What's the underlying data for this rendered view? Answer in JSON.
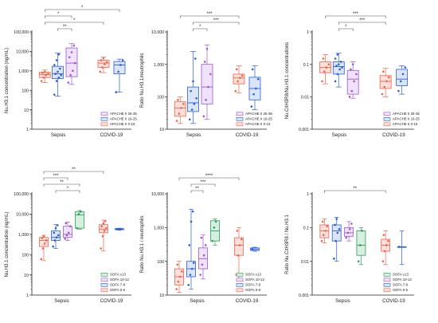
{
  "colors": {
    "apache_25_35": "#9b59d0",
    "apache_16_25": "#2c5fd4",
    "apache_0_15": "#f0644c",
    "sofa_13": "#2e9e5b",
    "sofa_10_12": "#2c5fd4",
    "sofa_7_9": "#9b59d0",
    "sofa_0_6": "#f0644c",
    "covid": "#2c5fd4"
  },
  "chart_data": [
    {
      "id": "A",
      "type": "box",
      "ylabel": "Nu.H3.1 concentration (ng/mL)",
      "yscale": "log",
      "ylim": [
        1,
        100000
      ],
      "yticks": [
        1,
        10,
        100,
        1000,
        10000,
        100000
      ],
      "ytick_labels": [
        "1",
        "10",
        "100",
        "1,000",
        "10,000",
        "100,000"
      ],
      "xlabels": [
        "Sepsis",
        "COVID-19"
      ],
      "groups": [
        {
          "series": "APACHE II 0-15",
          "color": "#f0644c",
          "fill": "#fde0d9",
          "group": "Sepsis",
          "q1": 450,
          "median": 650,
          "q3": 850,
          "min": 250,
          "max": 1100,
          "points": [
            300,
            450,
            600,
            700,
            800,
            900
          ]
        },
        {
          "series": "APACHE II 16-25",
          "color": "#2c5fd4",
          "fill": "#dbe5fa",
          "group": "Sepsis",
          "q1": 400,
          "median": 700,
          "q3": 1700,
          "min": 50,
          "max": 8000,
          "points": [
            60,
            300,
            450,
            600,
            700,
            900,
            1300,
            2000,
            3500,
            7000
          ]
        },
        {
          "series": "APACHE II 25-35",
          "color": "#9b59d0",
          "fill": "#efe2fa",
          "group": "Sepsis",
          "q1": 500,
          "median": 2500,
          "q3": 15000,
          "min": 200,
          "max": 25000,
          "points": [
            250,
            600,
            1000,
            2500,
            5000,
            9000,
            20000
          ]
        },
        {
          "series": "APACHE II 0-15",
          "color": "#f0644c",
          "fill": "#fde0d9",
          "group": "COVID-19",
          "q1": 1500,
          "median": 2500,
          "q3": 3500,
          "min": 800,
          "max": 5000,
          "points": [
            900,
            1500,
            2200,
            2800,
            3500,
            4500
          ]
        },
        {
          "series": "APACHE II 16-25",
          "color": "#2c5fd4",
          "fill": "#dbe5fa",
          "group": "COVID-19",
          "q1": 700,
          "median": 2000,
          "q3": 3000,
          "min": 80,
          "max": 4000,
          "points": [
            80,
            900,
            2000,
            3500
          ]
        }
      ],
      "legend": [
        "APACHE II 25-35",
        "APACHE II 16-25",
        "APACHE II 0-15"
      ],
      "significance": [
        {
          "from": 0,
          "to": 4,
          "label": "*",
          "level": 3
        },
        {
          "from": 0,
          "to": 2,
          "label": "*",
          "level": 2
        },
        {
          "from": 0,
          "to": 3,
          "label": "*",
          "level": 1
        },
        {
          "from": 1,
          "to": 2,
          "label": "**",
          "level": 0
        }
      ]
    },
    {
      "id": "B",
      "type": "box",
      "ylabel": "Ratio Nu.H3.1/neutrophils",
      "yscale": "log",
      "ylim": [
        10,
        10000
      ],
      "yticks": [
        10,
        100,
        1000,
        10000
      ],
      "ytick_labels": [
        "10",
        "100",
        "1,000",
        "10,000"
      ],
      "xlabels": [
        "Sepsis",
        "COVID-19"
      ],
      "groups": [
        {
          "series": "APACHE II 0-15",
          "color": "#f0644c",
          "fill": "#fde0d9",
          "group": "Sepsis",
          "q1": 25,
          "median": 45,
          "q3": 70,
          "min": 15,
          "max": 100,
          "points": [
            18,
            30,
            45,
            60,
            80
          ]
        },
        {
          "series": "APACHE II 16-25",
          "color": "#2c5fd4",
          "fill": "#dbe5fa",
          "group": "Sepsis",
          "q1": 35,
          "median": 65,
          "q3": 200,
          "min": 15,
          "max": 2500,
          "points": [
            20,
            40,
            60,
            90,
            150,
            300,
            1500
          ]
        },
        {
          "series": "APACHE II 25-35",
          "color": "#9b59d0",
          "fill": "#efe2fa",
          "group": "Sepsis",
          "q1": 60,
          "median": 200,
          "q3": 1000,
          "min": 20,
          "max": 4000,
          "points": [
            25,
            80,
            200,
            500,
            1200,
            3000
          ]
        },
        {
          "series": "APACHE II 0-15",
          "color": "#f0644c",
          "fill": "#fde0d9",
          "group": "COVID-19",
          "q1": 250,
          "median": 380,
          "q3": 500,
          "min": 130,
          "max": 900,
          "points": [
            150,
            300,
            380,
            450,
            700
          ]
        },
        {
          "series": "APACHE II 16-25",
          "color": "#2c5fd4",
          "fill": "#dbe5fa",
          "group": "COVID-19",
          "q1": 80,
          "median": 180,
          "q3": 400,
          "min": 40,
          "max": 900,
          "points": [
            50,
            120,
            180,
            350,
            700
          ]
        }
      ],
      "legend": [
        "APACHE II 25-35",
        "APACHE II 16-25",
        "APACHE II 0-15"
      ],
      "significance": [
        {
          "from": 0,
          "to": 3,
          "label": "***",
          "level": 2
        },
        {
          "from": 1,
          "to": 3,
          "label": "***",
          "level": 1
        },
        {
          "from": 1,
          "to": 2,
          "label": "*",
          "level": 0
        }
      ]
    },
    {
      "id": "C",
      "type": "box",
      "ylabel": "Nu.CitH3R8/Nu.H3.1 concentrations",
      "yscale": "log",
      "ylim": [
        0.001,
        1
      ],
      "yticks": [
        0.001,
        0.01,
        0.1,
        1
      ],
      "ytick_labels": [
        "0.001",
        "0.01",
        "0.1",
        "1"
      ],
      "xlabels": [
        "Sepsis",
        "COVID-19"
      ],
      "groups": [
        {
          "series": "APACHE II 0-15",
          "color": "#f0644c",
          "fill": "#fde0d9",
          "group": "Sepsis",
          "q1": 0.055,
          "median": 0.08,
          "q3": 0.12,
          "min": 0.025,
          "max": 0.2,
          "points": [
            0.03,
            0.06,
            0.08,
            0.1,
            0.15
          ]
        },
        {
          "series": "APACHE II 16-25",
          "color": "#2c5fd4",
          "fill": "#dbe5fa",
          "group": "Sepsis",
          "q1": 0.05,
          "median": 0.085,
          "q3": 0.12,
          "min": 0.02,
          "max": 0.22,
          "points": [
            0.03,
            0.05,
            0.07,
            0.08,
            0.09,
            0.1,
            0.12,
            0.15,
            0.2
          ]
        },
        {
          "series": "APACHE II 25-35",
          "color": "#9b59d0",
          "fill": "#efe2fa",
          "group": "Sepsis",
          "q1": 0.012,
          "median": 0.035,
          "q3": 0.065,
          "min": 0.009,
          "max": 0.12,
          "points": [
            0.01,
            0.015,
            0.03,
            0.05,
            0.07,
            0.1
          ]
        },
        {
          "series": "APACHE II 0-15",
          "color": "#f0644c",
          "fill": "#fde0d9",
          "group": "COVID-19",
          "q1": 0.018,
          "median": 0.03,
          "q3": 0.045,
          "min": 0.01,
          "max": 0.075,
          "points": [
            0.012,
            0.02,
            0.03,
            0.04,
            0.06
          ]
        },
        {
          "series": "APACHE II 16-25",
          "color": "#2c5fd4",
          "fill": "#dbe5fa",
          "group": "COVID-19",
          "q1": 0.022,
          "median": 0.035,
          "q3": 0.07,
          "min": 0.012,
          "max": 0.09,
          "points": [
            0.015,
            0.03,
            0.05,
            0.08
          ]
        }
      ],
      "legend": [
        "APACHE II 25-35",
        "APACHE II 16-25",
        "APACHE II 0-15"
      ],
      "significance": [
        {
          "from": 0,
          "to": 3,
          "label": "***",
          "level": 2
        },
        {
          "from": 1,
          "to": 3,
          "label": "***",
          "level": 1
        },
        {
          "from": 1,
          "to": 2,
          "label": "*",
          "level": 0
        }
      ]
    },
    {
      "id": "D",
      "type": "box",
      "ylabel": "Nu.H3.1 concentration (ng/mL)",
      "yscale": "log",
      "ylim": [
        1,
        100000
      ],
      "yticks": [
        1,
        10,
        100,
        1000,
        10000,
        100000
      ],
      "ytick_labels": [
        "1",
        "10",
        "100",
        "1,000",
        "10,000",
        "100,000"
      ],
      "xlabels": [
        "Sepsis",
        "COVID-19"
      ],
      "groups": [
        {
          "series": "SOFA 0-6",
          "color": "#f0644c",
          "fill": "#fde0d9",
          "group": "Sepsis",
          "q1": 250,
          "median": 500,
          "q3": 700,
          "min": 50,
          "max": 900,
          "points": [
            60,
            200,
            350,
            500,
            650,
            800
          ]
        },
        {
          "series": "SOFA 7-9",
          "color": "#2c5fd4",
          "fill": "#dbe5fa",
          "group": "Sepsis",
          "q1": 500,
          "median": 700,
          "q3": 1500,
          "min": 200,
          "max": 3000,
          "points": [
            250,
            500,
            700,
            900,
            1200,
            2000,
            2800
          ]
        },
        {
          "series": "SOFA 10-12",
          "color": "#9b59d0",
          "fill": "#efe2fa",
          "group": "Sepsis",
          "q1": 700,
          "median": 1000,
          "q3": 2500,
          "min": 500,
          "max": 4000,
          "points": [
            600,
            900,
            1200,
            2500,
            3500
          ]
        },
        {
          "series": "SOFA ≥13",
          "color": "#2e9e5b",
          "fill": "#d7efe1",
          "group": "Sepsis",
          "q1": 2000,
          "median": 9000,
          "q3": 13000,
          "min": 1800,
          "max": 15000,
          "points": [
            2000,
            10000,
            13000
          ]
        },
        {
          "series": "SOFA 0-6",
          "color": "#f0644c",
          "fill": "#fde0d9",
          "group": "COVID-19",
          "q1": 1200,
          "median": 1800,
          "q3": 3000,
          "min": 150,
          "max": 5000,
          "points": [
            200,
            800,
            1500,
            2000,
            2500,
            3500,
            4500
          ]
        },
        {
          "series": "COVID",
          "color": "#2c5fd4",
          "fill": "#dbe5fa",
          "group": "COVID-19",
          "q1": 1700,
          "median": 1800,
          "q3": 1900,
          "min": 1600,
          "max": 2000,
          "points": [
            1800
          ]
        }
      ],
      "legend": [
        "SOFA ≥13",
        "SOFA 10-12",
        "SOFA 7-9",
        "SOFA 0-6"
      ],
      "significance": [
        {
          "from": 0,
          "to": 4,
          "label": "**",
          "level": 3
        },
        {
          "from": 0,
          "to": 2,
          "label": "***",
          "level": 2
        },
        {
          "from": 0,
          "to": 3,
          "label": "**",
          "level": 1
        },
        {
          "from": 1,
          "to": 3,
          "label": "*",
          "level": 0
        }
      ]
    },
    {
      "id": "E",
      "type": "box",
      "ylabel": "Ratio Nu.H3.1 / neutrophils",
      "yscale": "log",
      "ylim": [
        10,
        10000
      ],
      "yticks": [
        10,
        100,
        1000,
        10000
      ],
      "ytick_labels": [
        "10",
        "100",
        "1,000",
        "10,000"
      ],
      "xlabels": [
        "Sepsis",
        "COVID-19"
      ],
      "groups": [
        {
          "series": "SOFA 0-6",
          "color": "#f0644c",
          "fill": "#fde0d9",
          "group": "Sepsis",
          "q1": 20,
          "median": 35,
          "q3": 60,
          "min": 12,
          "max": 100,
          "points": [
            15,
            25,
            35,
            50,
            80
          ]
        },
        {
          "series": "SOFA 7-9",
          "color": "#2c5fd4",
          "fill": "#dbe5fa",
          "group": "Sepsis",
          "q1": 35,
          "median": 60,
          "q3": 100,
          "min": 15,
          "max": 3500,
          "points": [
            20,
            40,
            60,
            90,
            300,
            1500,
            3000
          ]
        },
        {
          "series": "SOFA 10-12",
          "color": "#9b59d0",
          "fill": "#efe2fa",
          "group": "Sepsis",
          "q1": 60,
          "median": 120,
          "q3": 250,
          "min": 30,
          "max": 600,
          "points": [
            40,
            80,
            150,
            300,
            500
          ]
        },
        {
          "series": "SOFA ≥13",
          "color": "#2e9e5b",
          "fill": "#d7efe1",
          "group": "Sepsis",
          "q1": 400,
          "median": 800,
          "q3": 1600,
          "min": 300,
          "max": 1800,
          "points": [
            400,
            1000,
            1500
          ]
        },
        {
          "series": "SOFA 0-6",
          "color": "#f0644c",
          "fill": "#fde0d9",
          "group": "COVID-19",
          "q1": 150,
          "median": 300,
          "q3": 500,
          "min": 30,
          "max": 1000,
          "points": [
            40,
            150,
            300,
            450,
            800
          ]
        },
        {
          "series": "COVID",
          "color": "#2c5fd4",
          "fill": "#dbe5fa",
          "group": "COVID-19",
          "q1": 210,
          "median": 230,
          "q3": 250,
          "min": 200,
          "max": 260,
          "points": [
            230
          ]
        }
      ],
      "legend": [
        "SOFA ≥13",
        "SOFA 10-12",
        "SOFA 7-9",
        "SOFA 0-6"
      ],
      "significance": [
        {
          "from": 0,
          "to": 4,
          "label": "****",
          "level": 2
        },
        {
          "from": 1,
          "to": 3,
          "label": "***",
          "level": 1
        },
        {
          "from": 1,
          "to": 2,
          "label": "**",
          "level": 0
        }
      ]
    },
    {
      "id": "F",
      "type": "box",
      "ylabel": "Ratio Nu.CitH3R8 / Nu.H3.1",
      "yscale": "log",
      "ylim": [
        0.001,
        1
      ],
      "yticks": [
        0.001,
        0.01,
        0.1,
        1
      ],
      "ytick_labels": [
        "0.001",
        "0.01",
        "0.1",
        "1"
      ],
      "xlabels": [
        "Sepsis",
        "COVID-19"
      ],
      "groups": [
        {
          "series": "SOFA 0-6",
          "color": "#f0644c",
          "fill": "#fde0d9",
          "group": "Sepsis",
          "q1": 0.05,
          "median": 0.08,
          "q3": 0.12,
          "min": 0.035,
          "max": 0.18,
          "points": [
            0.04,
            0.06,
            0.08,
            0.11,
            0.15
          ]
        },
        {
          "series": "SOFA 7-9",
          "color": "#2c5fd4",
          "fill": "#dbe5fa",
          "group": "Sepsis",
          "q1": 0.04,
          "median": 0.08,
          "q3": 0.12,
          "min": 0.01,
          "max": 0.2,
          "points": [
            0.012,
            0.04,
            0.07,
            0.09,
            0.12,
            0.18
          ]
        },
        {
          "series": "SOFA 10-12",
          "color": "#9b59d0",
          "fill": "#efe2fa",
          "group": "Sepsis",
          "q1": 0.055,
          "median": 0.07,
          "q3": 0.1,
          "min": 0.04,
          "max": 0.15,
          "points": [
            0.05,
            0.07,
            0.09,
            0.13
          ]
        },
        {
          "series": "SOFA ≥13",
          "color": "#2e9e5b",
          "fill": "#d7efe1",
          "group": "Sepsis",
          "q1": 0.015,
          "median": 0.03,
          "q3": 0.08,
          "min": 0.008,
          "max": 0.1,
          "points": [
            0.01,
            0.03,
            0.08
          ]
        },
        {
          "series": "SOFA 0-6",
          "color": "#f0644c",
          "fill": "#fde0d9",
          "group": "COVID-19",
          "q1": 0.02,
          "median": 0.03,
          "q3": 0.045,
          "min": 0.008,
          "max": 0.08,
          "points": [
            0.01,
            0.02,
            0.03,
            0.04,
            0.06
          ]
        },
        {
          "series": "COVID",
          "color": "#2c5fd4",
          "fill": "#dbe5fa",
          "group": "COVID-19",
          "q1": 0.027,
          "median": 0.027,
          "q3": 0.027,
          "min": 0.008,
          "max": 0.08,
          "points": [
            0.027
          ]
        }
      ],
      "legend": [
        "SOFA ≥13",
        "SOFA 10-12",
        "SOFA 7-9",
        "SOFA 0-6"
      ],
      "significance": [
        {
          "from": 0,
          "to": 4,
          "label": "**",
          "level": 0
        }
      ]
    }
  ]
}
